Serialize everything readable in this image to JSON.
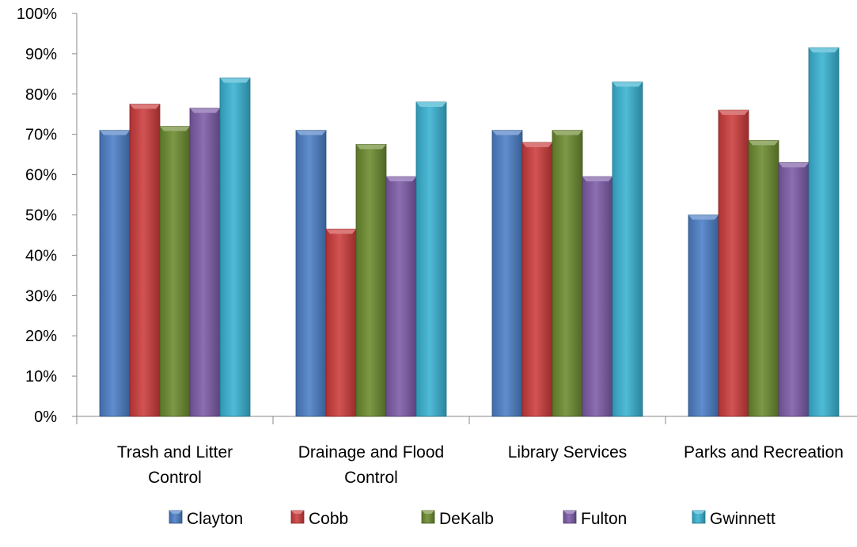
{
  "chart_data": {
    "type": "bar",
    "title": "",
    "xlabel": "",
    "ylabel": "",
    "ylim": [
      0,
      100
    ],
    "ytick_labels": [
      "0%",
      "10%",
      "20%",
      "30%",
      "40%",
      "50%",
      "60%",
      "70%",
      "80%",
      "90%",
      "100%"
    ],
    "categories": [
      [
        "Trash and Litter",
        "Control"
      ],
      [
        "Drainage and Flood",
        "Control"
      ],
      [
        "Library Services"
      ],
      [
        "Parks and Recreation"
      ]
    ],
    "series": [
      {
        "name": "Clayton",
        "color": "#4a7ec6",
        "values": [
          71,
          71,
          71,
          50
        ]
      },
      {
        "name": "Cobb",
        "color": "#cc3b3b",
        "values": [
          77.5,
          46.5,
          68,
          76
        ]
      },
      {
        "name": "DeKalb",
        "color": "#6b8a2e",
        "values": [
          72,
          67.5,
          71,
          68.5
        ]
      },
      {
        "name": "Fulton",
        "color": "#7c5aa6",
        "values": [
          76.5,
          59.5,
          59.5,
          63
        ]
      },
      {
        "name": "Gwinnett",
        "color": "#38b2d1",
        "values": [
          84,
          78,
          83,
          91.5
        ]
      }
    ],
    "legend_position": "bottom",
    "grid": false
  }
}
